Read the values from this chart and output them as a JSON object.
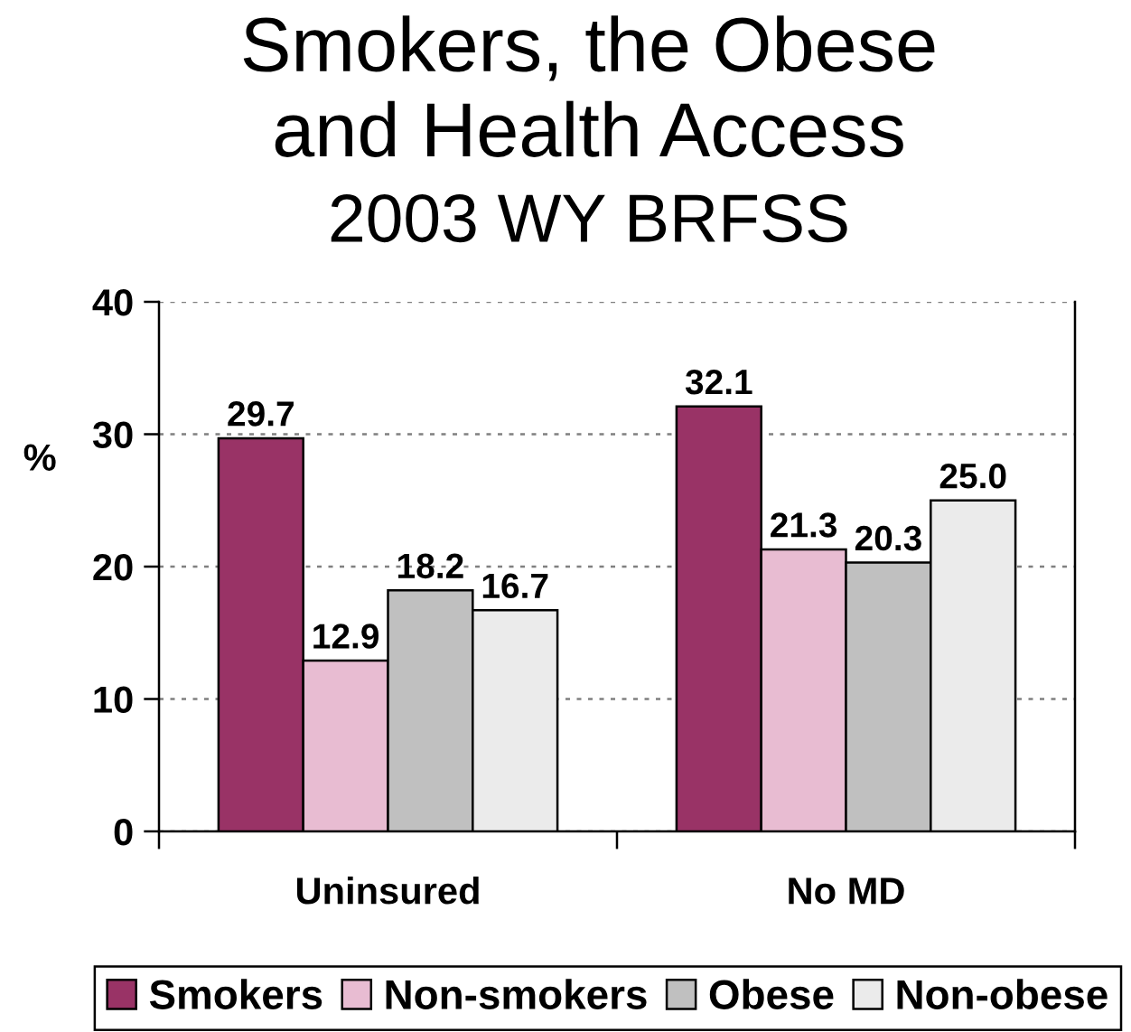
{
  "chart_data": {
    "type": "bar",
    "title": "Smokers, the Obese\nand Health Access",
    "subtitle": "2003 WY BRFSS",
    "ylabel": "%",
    "categories": [
      "Uninsured",
      "No MD"
    ],
    "series": [
      {
        "name": "Smokers",
        "color": "#993366",
        "values": [
          29.7,
          32.1
        ],
        "value_labels": [
          "29.7",
          "32.1"
        ]
      },
      {
        "name": "Non-smokers",
        "color": "#e8bcd2",
        "values": [
          12.9,
          21.3
        ],
        "value_labels": [
          "12.9",
          "21.3"
        ]
      },
      {
        "name": "Obese",
        "color": "#c0c0c0",
        "values": [
          18.2,
          20.3
        ],
        "value_labels": [
          "18.2",
          "20.3"
        ]
      },
      {
        "name": "Non-obese",
        "color": "#ebebeb",
        "values": [
          16.7,
          25.0
        ],
        "value_labels": [
          "16.7",
          "25.0"
        ]
      }
    ],
    "ylim": [
      0,
      40
    ],
    "yticks": [
      0,
      10,
      20,
      30,
      40
    ],
    "grid": "y",
    "legend": "bottom"
  }
}
